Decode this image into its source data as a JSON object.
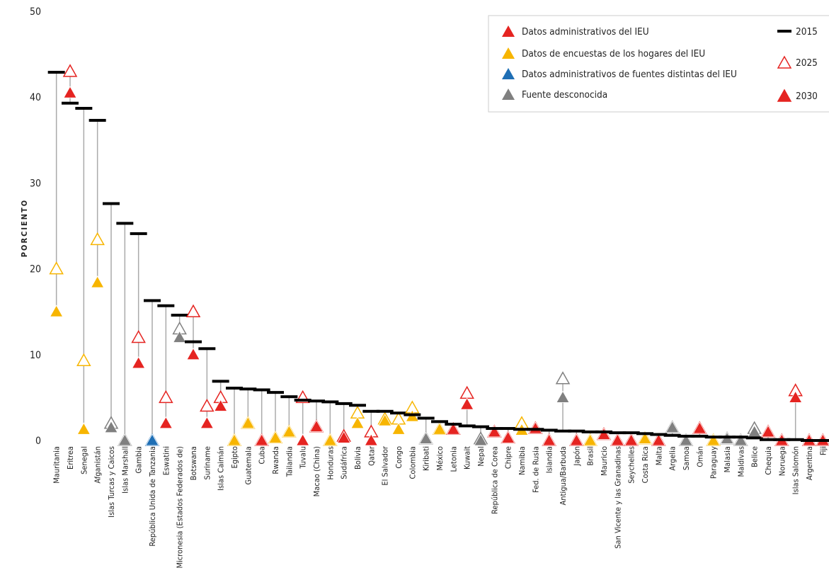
{
  "chart_data": {
    "type": "dumbbell",
    "y_label": "PORCIENTO",
    "ylim": [
      0,
      50
    ],
    "yticks": [
      0,
      10,
      20,
      30,
      40,
      50
    ],
    "categories": [
      "Mauritania",
      "Eritrea",
      "Senegal",
      "Afganistán",
      "Islas Turcas y Caicos",
      "Islas Marshall",
      "Gambia",
      "República Unida de Tanzania",
      "Eswatini",
      "Micronesia (Estados Federados de)",
      "Botswana",
      "Suriname",
      "Islas Caimán",
      "Egipto",
      "Guatemala",
      "Cuba",
      "Rwanda",
      "Tailandia",
      "Tuvalu",
      "Macao (China)",
      "Honduras",
      "Sudáfrica",
      "Bolivia",
      "Qatar",
      "El Salvador",
      "Congo",
      "Colombia",
      "Kiribati",
      "México",
      "Letonia",
      "Kuwait",
      "Nepal",
      "República de Corea",
      "Chipre",
      "Namibia",
      "Fed. de Rusia",
      "Islandia",
      "Antigua/Barbuda",
      "Japón",
      "Brasil",
      "Mauricio",
      "San Vicente y las Granadinas",
      "Seychelles",
      "Costa Rica",
      "Malta",
      "Argelia",
      "Samoa",
      "Omán",
      "Paraguay",
      "Malasia",
      "Maldivas",
      "Belice",
      "Chequia",
      "Noruega",
      "Islas Salomón",
      "Argentina",
      "Fiji"
    ],
    "series": [
      {
        "name": "2015",
        "color": "#000000",
        "values": [
          42.9,
          39.3,
          38.7,
          37.3,
          27.6,
          25.3,
          24.1,
          16.3,
          15.7,
          14.6,
          11.5,
          10.7,
          6.9,
          6.1,
          6.0,
          5.9,
          5.6,
          5.1,
          4.7,
          4.6,
          4.5,
          4.3,
          4.1,
          3.4,
          3.4,
          3.2,
          3.0,
          2.6,
          2.2,
          1.9,
          1.7,
          1.6,
          1.4,
          1.4,
          1.3,
          1.3,
          1.2,
          1.1,
          1.1,
          1.0,
          1.0,
          0.9,
          0.9,
          0.8,
          0.7,
          0.6,
          0.5,
          0.5,
          0.4,
          0.4,
          0.4,
          0.3,
          0.1,
          0.1,
          0.1,
          0,
          0
        ]
      },
      {
        "name": "2025",
        "color": "#e52421",
        "values": [
          20,
          43,
          9.3,
          23.4,
          2.0,
          0,
          12,
          0,
          5,
          13,
          15,
          4,
          5,
          0,
          2,
          0,
          0.3,
          1,
          5,
          1.6,
          0,
          0.5,
          3.2,
          1,
          2.5,
          2.5,
          3.8,
          0.2,
          1.3,
          1.3,
          5.5,
          0.2,
          1,
          0.3,
          2,
          1.4,
          0,
          7.2,
          0,
          0,
          0.7,
          0,
          0,
          0.2,
          0,
          1.5,
          0,
          1.4,
          0,
          0.2,
          0,
          1.4,
          1,
          0,
          5.8,
          0,
          0
        ]
      },
      {
        "name": "2030",
        "color": "#e52421",
        "values": [
          15,
          40.5,
          1.3,
          18.4,
          1.5,
          0,
          9,
          0,
          2,
          12,
          10,
          2,
          4,
          0,
          2,
          0,
          0.3,
          1,
          0,
          1.6,
          0,
          0.3,
          2,
          0,
          2.3,
          1.3,
          2.8,
          0.2,
          1.3,
          1.3,
          4.2,
          0,
          1,
          0.3,
          1.2,
          1.4,
          0,
          5,
          0,
          0,
          0.7,
          0,
          0,
          0.2,
          0,
          1.5,
          0,
          1.4,
          0,
          0.2,
          0,
          1,
          1,
          0,
          5,
          0,
          0
        ]
      }
    ],
    "point_colors": [
      "#f7b500",
      "#e52421",
      "#f7b500",
      "#f7b500",
      "#808080",
      "#808080",
      "#e52421",
      "#1f6fb5",
      "#e52421",
      "#808080",
      "#e52421",
      "#e52421",
      "#e52421",
      "#f7b500",
      "#f7b500",
      "#e52421",
      "#f7b500",
      "#f7b500",
      "#e52421",
      "#e52421",
      "#f7b500",
      "#e52421",
      "#f7b500",
      "#e52421",
      "#f7b500",
      "#f7b500",
      "#f7b500",
      "#808080",
      "#f7b500",
      "#e52421",
      "#e52421",
      "#808080",
      "#e52421",
      "#e52421",
      "#f7b500",
      "#e52421",
      "#e52421",
      "#808080",
      "#e52421",
      "#f7b500",
      "#e52421",
      "#e52421",
      "#e52421",
      "#f7b500",
      "#e52421",
      "#808080",
      "#808080",
      "#e52421",
      "#f7b500",
      "#808080",
      "#808080",
      "#808080",
      "#e52421",
      "#e52421",
      "#e52421",
      "#e52421",
      "#e52421"
    ],
    "sources": [
      {
        "name": "Datos administrativos del IEU",
        "color": "#e52421"
      },
      {
        "name": "Datos de encuestas de los hogares del IEU",
        "color": "#f7b500"
      },
      {
        "name": "Datos administrativos de fuentes distintas del IEU",
        "color": "#1f6fb5"
      },
      {
        "name": "Fuente desconocida",
        "color": "#808080"
      }
    ]
  }
}
